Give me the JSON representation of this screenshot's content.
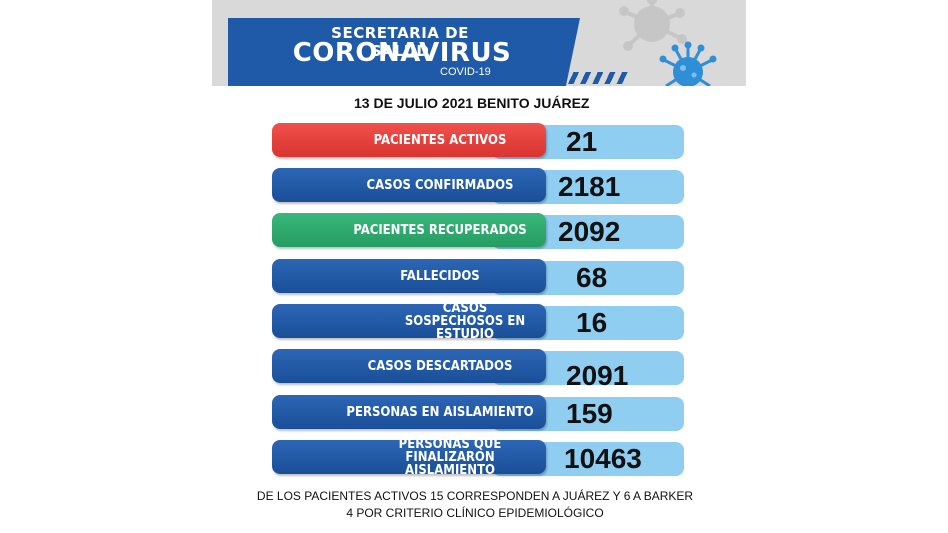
{
  "header": {
    "line1": "SECRETARIA DE SALUD",
    "line2": "CORONAVIRUS",
    "line3": "COVID-19",
    "date": "13 DE JULIO 2021 BENITO JUÁREZ"
  },
  "stats": [
    {
      "label": "PACIENTES ACTIVOS",
      "value": "21",
      "color": "#e0403c"
    },
    {
      "label": "CASOS CONFIRMADOS",
      "value": "2181",
      "color": "#1f5aa8"
    },
    {
      "label": "PACIENTES RECUPERADOS",
      "value": "2092",
      "color": "#2eab6d"
    },
    {
      "label": "FALLECIDOS",
      "value": "68",
      "color": "#1f5aa8"
    },
    {
      "label": "CASOS SOSPECHOSOS EN ESTUDIO",
      "value": "16",
      "color": "#1f5aa8"
    },
    {
      "label": "CASOS DESCARTADOS",
      "value": "2091",
      "color": "#1f5aa8"
    },
    {
      "label": "PERSONAS EN AISLAMIENTO",
      "value": "159",
      "color": "#1f5aa8"
    },
    {
      "label": "PERSONAS QUE FINALIZARON AISLAMIENTO",
      "value": "10463",
      "color": "#1f5aa8"
    }
  ],
  "footer": {
    "line1": "DE LOS PACIENTES ACTIVOS  15 CORRESPONDEN A JUÁREZ Y 6 A BARKER",
    "line2": "4 POR CRITERIO CLÍNICO EPIDEMIOLÓGICO"
  },
  "colors": {
    "accent_blue": "#1f5aa8",
    "light_blue": "#8fcdf1",
    "red": "#e0403c",
    "green": "#2eab6d"
  },
  "icons": [
    "coronavirus-icon"
  ]
}
